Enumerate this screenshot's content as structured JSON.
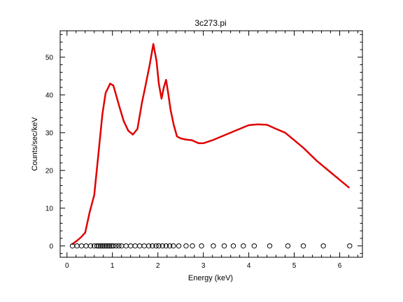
{
  "chart_data": {
    "type": "line",
    "title": "3c273.pi",
    "xlabel": "Energy (keV)",
    "ylabel": "Counts/sec/keV",
    "xlim": [
      -0.15,
      6.5
    ],
    "ylim": [
      -3,
      57
    ],
    "xticks": [
      0,
      1,
      2,
      3,
      4,
      5,
      6
    ],
    "yticks": [
      0,
      10,
      20,
      30,
      40,
      50
    ],
    "grid": false,
    "colors": {
      "model": "#e00000",
      "points": "#000000",
      "axes": "#000000"
    },
    "series": [
      {
        "style": "line",
        "x": [
          0.12,
          0.2,
          0.3,
          0.4,
          0.5,
          0.6,
          0.68,
          0.78,
          0.85,
          0.95,
          1.02,
          1.08,
          1.15,
          1.25,
          1.35,
          1.45,
          1.55,
          1.65,
          1.72,
          1.82,
          1.9,
          1.97,
          2.02,
          2.08,
          2.13,
          2.18,
          2.22,
          2.28,
          2.35,
          2.42,
          2.5,
          2.6,
          2.75,
          2.9,
          3.0,
          3.2,
          3.5,
          3.8,
          4.0,
          4.2,
          4.4,
          4.6,
          4.8,
          5.0,
          5.2,
          5.5,
          5.8,
          6.0,
          6.2
        ],
        "y": [
          0.5,
          1.2,
          2.2,
          3.5,
          9,
          13.5,
          23,
          35,
          40.5,
          43,
          42.5,
          40,
          37,
          33,
          30.5,
          29.5,
          31,
          38,
          42,
          48,
          53.5,
          49,
          43,
          39,
          42,
          44,
          41,
          36,
          32,
          29,
          28.5,
          28.2,
          28,
          27.2,
          27.2,
          28,
          29.5,
          31,
          32,
          32.2,
          32.1,
          31,
          30,
          28,
          26,
          22.5,
          19.5,
          17.5,
          15.5
        ]
      },
      {
        "style": "markers",
        "x": [
          0.12,
          0.22,
          0.32,
          0.42,
          0.52,
          0.6,
          0.66,
          0.7,
          0.74,
          0.78,
          0.82,
          0.86,
          0.9,
          0.94,
          0.98,
          1.02,
          1.08,
          1.14,
          1.2,
          1.3,
          1.4,
          1.5,
          1.6,
          1.7,
          1.8,
          1.88,
          1.96,
          2.02,
          2.1,
          2.18,
          2.26,
          2.34,
          2.46,
          2.62,
          2.76,
          2.96,
          3.22,
          3.46,
          3.66,
          3.88,
          4.12,
          4.46,
          4.86,
          5.2,
          5.64,
          6.22
        ],
        "y": [
          0,
          0,
          0,
          0,
          0,
          0,
          0,
          0,
          0,
          0,
          0,
          0,
          0,
          0,
          0,
          0,
          0,
          0,
          0,
          0,
          0,
          0,
          0,
          0,
          0,
          0,
          0,
          0,
          0,
          0,
          0,
          0,
          0,
          0,
          0,
          0,
          0,
          0,
          0,
          0,
          0,
          0,
          0,
          0,
          0,
          0
        ]
      }
    ]
  }
}
